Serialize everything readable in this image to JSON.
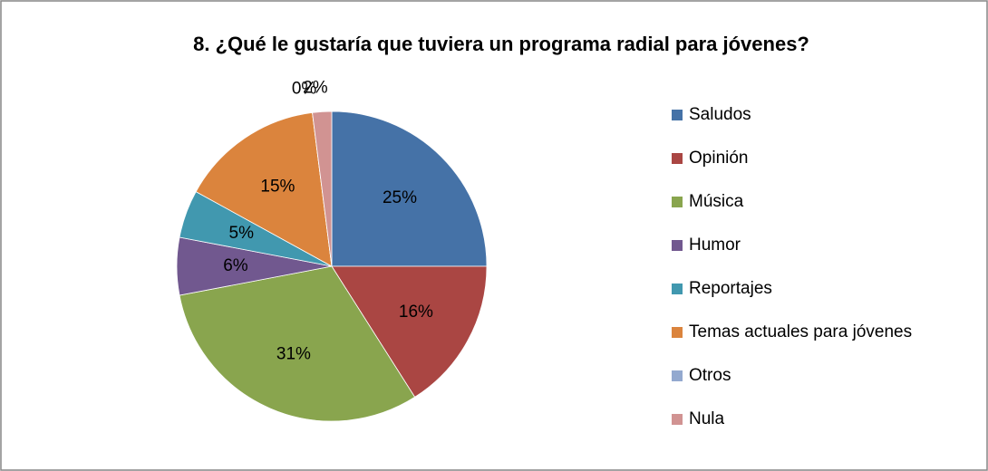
{
  "chart_data": {
    "type": "pie",
    "title": "8. ¿Qué le gustaría que tuviera un programa radial para jóvenes?",
    "categories": [
      "Saludos",
      "Opinión",
      "Música",
      "Humor",
      "Reportajes",
      "Temas actuales para jóvenes",
      "Otros",
      "Nula"
    ],
    "values": [
      25,
      16,
      31,
      6,
      5,
      15,
      0,
      2
    ],
    "value_labels": [
      "25%",
      "16%",
      "31%",
      "6%",
      "5%",
      "15%",
      "0%",
      "2%"
    ],
    "colors": [
      "#4572a7",
      "#aa4643",
      "#89a54e",
      "#71588f",
      "#4198af",
      "#db843d",
      "#93a9cf",
      "#d19392"
    ],
    "legend": "right"
  }
}
